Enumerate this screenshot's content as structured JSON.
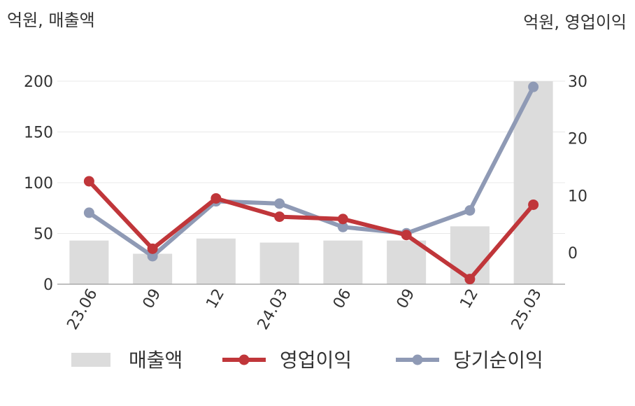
{
  "chart_data": {
    "type": "bar+line",
    "left_unit_label": "억원, 매출액",
    "right_unit_label": "억원, 영업이익",
    "categories": [
      "23.06",
      "09",
      "12",
      "24.03",
      "06",
      "09",
      "12",
      "25.03"
    ],
    "y_left": {
      "lim": [
        0,
        200
      ],
      "ticks": [
        0,
        50,
        100,
        150,
        200
      ]
    },
    "y_right": {
      "lim": [
        -5.5,
        30
      ],
      "ticks": [
        0,
        10,
        20,
        30
      ]
    },
    "series": [
      {
        "name": "매출액",
        "type": "bar",
        "axis": "left",
        "color": "#dcdcdc",
        "values": [
          43,
          30,
          45,
          41,
          43,
          43,
          57,
          200
        ]
      },
      {
        "name": "영업이익",
        "type": "line",
        "axis": "right",
        "color": "#c0363a",
        "values": [
          12.5,
          0.7,
          9.5,
          6.3,
          5.9,
          3.1,
          -4.6,
          8.4
        ]
      },
      {
        "name": "당기순이익",
        "type": "line",
        "axis": "right",
        "color": "#8f9ab5",
        "values": [
          7.0,
          -0.6,
          9.0,
          8.6,
          4.5,
          3.4,
          7.4,
          29.0
        ]
      }
    ],
    "grid": true,
    "legend": "bottom"
  }
}
